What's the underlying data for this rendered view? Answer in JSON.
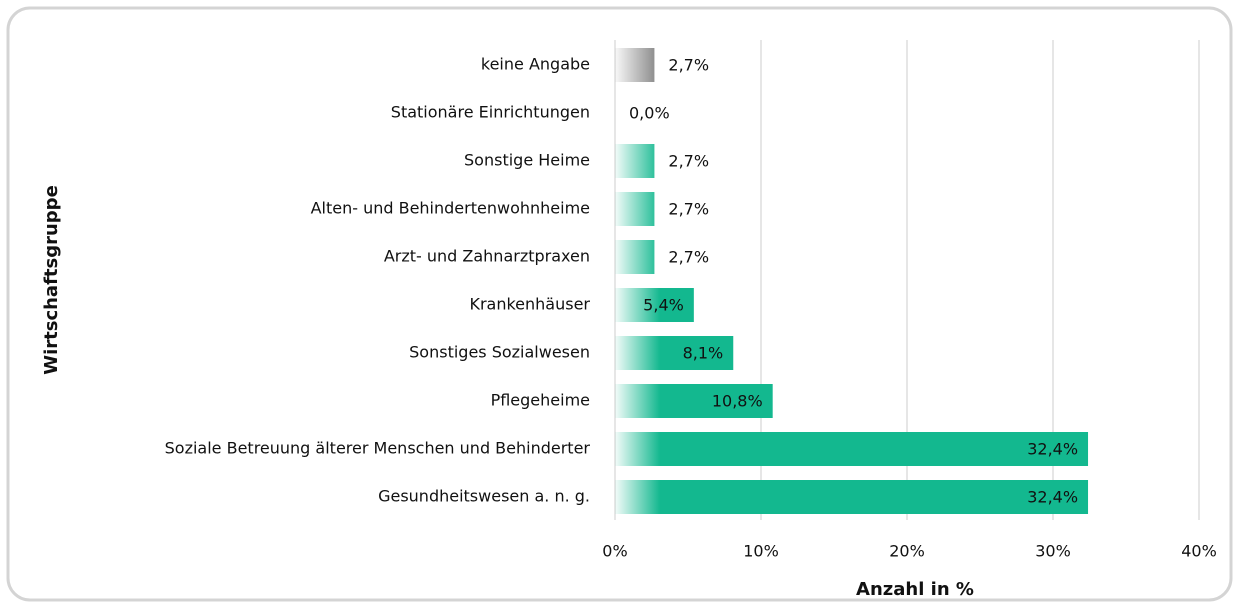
{
  "chart_data": {
    "type": "barh",
    "y_label": "Wirtschaftsgruppe",
    "x_label": "Anzahl in %",
    "categories": [
      "keine Angabe",
      "Stationäre Einrichtungen",
      "Sonstige Heime",
      "Alten- und Behindertenwohnheime",
      "Arzt- und Zahnarztpraxen",
      "Krankenhäuser",
      "Sonstiges Sozialwesen",
      "Pflegeheime",
      "Soziale Betreuung älterer Menschen und Behinderter",
      "Gesundheitswesen a. n. g."
    ],
    "values": [
      2.7,
      0.0,
      2.7,
      2.7,
      2.7,
      5.4,
      8.1,
      10.8,
      32.4,
      32.4
    ],
    "value_labels": [
      "2,7%",
      "0,0%",
      "2,7%",
      "2,7%",
      "2,7%",
      "5,4%",
      "8,1%",
      "10,8%",
      "32,4%",
      "32,4%"
    ],
    "colors": [
      "#808080",
      "#13b88f",
      "#13b88f",
      "#13b88f",
      "#13b88f",
      "#13b88f",
      "#13b88f",
      "#13b88f",
      "#13b88f",
      "#13b88f"
    ],
    "xlim": [
      0,
      40
    ],
    "xticks": [
      {
        "value": 0,
        "label": "0%"
      },
      {
        "value": 10,
        "label": "10%"
      },
      {
        "value": 20,
        "label": "20%"
      },
      {
        "value": 30,
        "label": "30%"
      },
      {
        "value": 40,
        "label": "40%"
      }
    ],
    "grid": true
  }
}
